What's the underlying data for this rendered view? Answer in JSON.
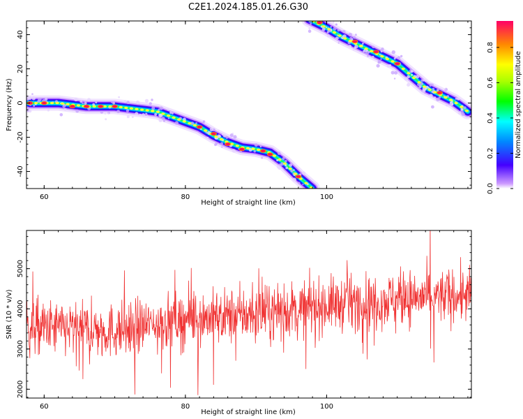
{
  "figure": {
    "title": "C2E1.2024.185.01.26.G30"
  },
  "chart_data": [
    {
      "type": "heatmap",
      "xlabel": "Height of straight line (km)",
      "ylabel": "Frequency (Hz)",
      "xlim": [
        57.5,
        120.5
      ],
      "ylim": [
        -50,
        48
      ],
      "x_ticks": [
        60,
        80,
        100
      ],
      "y_ticks": [
        40,
        20,
        0,
        -20,
        -40
      ],
      "colorbar": {
        "label": "Normalized spectral amplitude",
        "range": [
          0.0,
          0.95
        ],
        "ticks": [
          0.0,
          0.2,
          0.4,
          0.6,
          0.8
        ]
      },
      "segment_a": {
        "x": [
          57.5,
          60,
          62,
          64,
          66,
          68,
          70,
          72,
          74,
          76,
          78,
          80,
          82,
          84,
          86,
          88,
          90,
          92,
          94,
          96,
          98
        ],
        "y": [
          0,
          0,
          0,
          -1,
          -2,
          -2,
          -2,
          -3,
          -4,
          -5,
          -8,
          -11,
          -14,
          -19,
          -23,
          -26,
          -27,
          -29,
          -35,
          -43,
          -50
        ]
      },
      "segment_b": {
        "x": [
          97.5,
          100,
          102,
          104,
          106,
          108,
          110,
          112,
          114,
          116,
          118,
          120
        ],
        "y": [
          49,
          44,
          39,
          35,
          31,
          27,
          23,
          16,
          9,
          5,
          1,
          -5
        ]
      },
      "bright_points": [
        {
          "x": 58,
          "y": 0
        },
        {
          "x": 60,
          "y": 0
        },
        {
          "x": 64,
          "y": -2
        },
        {
          "x": 66,
          "y": -2
        },
        {
          "x": 68,
          "y": -2
        },
        {
          "x": 70,
          "y": -2
        },
        {
          "x": 82,
          "y": -14
        },
        {
          "x": 84,
          "y": -18
        },
        {
          "x": 86,
          "y": -24
        },
        {
          "x": 88,
          "y": -27
        },
        {
          "x": 91,
          "y": -28
        },
        {
          "x": 92,
          "y": -30
        },
        {
          "x": 96,
          "y": -43
        },
        {
          "x": 99,
          "y": 47
        },
        {
          "x": 104,
          "y": 36
        },
        {
          "x": 107,
          "y": 30
        },
        {
          "x": 110,
          "y": 23
        },
        {
          "x": 116,
          "y": 6
        }
      ]
    },
    {
      "type": "line",
      "xlabel": "Height of straight line (km)",
      "ylabel": "SNR (10 * v/v)",
      "xlim": [
        57.5,
        120.5
      ],
      "ylim": [
        1780,
        5950
      ],
      "x_ticks": [
        60,
        80,
        100
      ],
      "y_ticks": [
        2000,
        3000,
        4000,
        5000
      ],
      "series": [
        {
          "color": "#f03232",
          "trend": {
            "x": [
              57.5,
              70,
              80,
              90,
              100,
              110,
              120.5
            ],
            "y": [
              3550,
              3450,
              3750,
              3850,
              4100,
              4250,
              4350
            ]
          },
          "noise_amplitude": 450,
          "n_points": 1200
        }
      ]
    }
  ]
}
